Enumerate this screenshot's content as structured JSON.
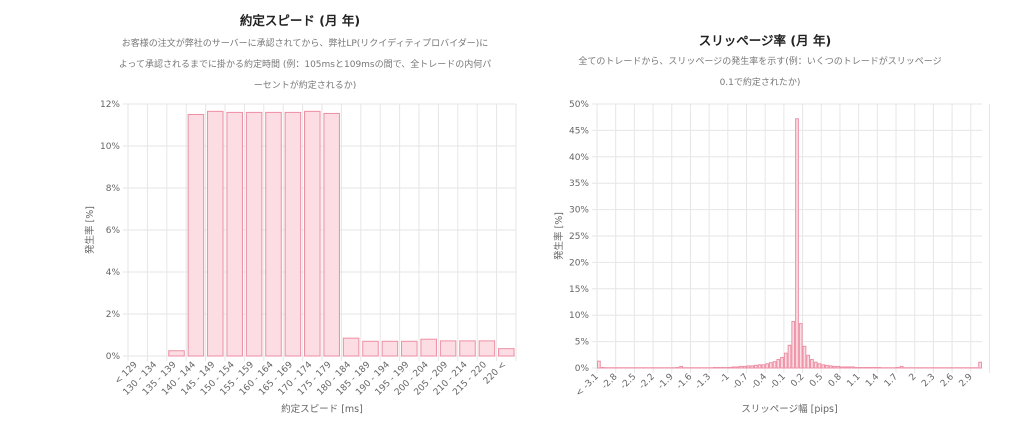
{
  "colors": {
    "bar_fill": "#fbdde3",
    "bar_stroke": "#ee8fa4",
    "grid": "#e6e6e6",
    "text": "#666666",
    "title": "#222222"
  },
  "chart_data": [
    {
      "type": "bar",
      "title": "約定スピード (月 年)",
      "subtitle_lines": [
        "お客様の注文が弊社のサーバーに承認されてから、弊社LP(リクイディティプロバイダー)に",
        "よって承認されるまでに掛かる約定時間 (例：105msと109msの間で、全トレードの内何パ",
        "ーセントが約定されるか)"
      ],
      "xlabel": "約定スピード [ms]",
      "ylabel": "発生率 [%]",
      "ylim": [
        0,
        12
      ],
      "yticks": [
        "0%",
        "2%",
        "4%",
        "6%",
        "8%",
        "10%",
        "12%"
      ],
      "grid": true,
      "legend": "none",
      "categories": [
        "< 129",
        "130 - 134",
        "135 - 139",
        "140 - 144",
        "145 - 149",
        "150 - 154",
        "155 - 159",
        "160 - 164",
        "165 - 169",
        "170 - 174",
        "175 - 179",
        "180 - 184",
        "185 - 189",
        "190 - 194",
        "195 - 199",
        "200 - 204",
        "205 - 209",
        "210 - 214",
        "215 - 220",
        "220 <"
      ],
      "values": [
        0,
        0,
        0.25,
        11.5,
        11.65,
        11.6,
        11.6,
        11.6,
        11.6,
        11.65,
        11.55,
        0.85,
        0.7,
        0.7,
        0.7,
        0.8,
        0.72,
        0.72,
        0.72,
        0.35
      ]
    },
    {
      "type": "bar",
      "title": "スリッページ率 (月 年)",
      "subtitle_lines": [
        "全てのトレードから、スリッページの発生率を示す(例：いくつのトレードがスリッページ",
        "0.1で約定されたか)"
      ],
      "xlabel": "スリッページ幅 [pips]",
      "ylabel": "発生率 [%]",
      "ylim": [
        0,
        50
      ],
      "yticks": [
        "0%",
        "5%",
        "10%",
        "15%",
        "20%",
        "25%",
        "30%",
        "35%",
        "40%",
        "45%",
        "50%"
      ],
      "grid": true,
      "legend": "none",
      "tick_labels": [
        "< -3.1",
        "-2.8",
        "-2.5",
        "-2.2",
        "-1.9",
        "-1.6",
        "-1.3",
        "-1",
        "-0.7",
        "-0.4",
        "-0.1",
        "0.2",
        "0.5",
        "0.8",
        "1.1",
        "1.4",
        "1.7",
        "2",
        "2.3",
        "2.6",
        "2.9"
      ],
      "values": [
        1.3,
        0.1,
        0.05,
        0.05,
        0.05,
        0.05,
        0.05,
        0.05,
        0.05,
        0.05,
        0.05,
        0.05,
        0.05,
        0.05,
        0.05,
        0.05,
        0.05,
        0.05,
        0.05,
        0.05,
        0.05,
        0.1,
        0.3,
        0.05,
        0.05,
        0.05,
        0.05,
        0.05,
        0.05,
        0.05,
        0.05,
        0.1,
        0.1,
        0.1,
        0.1,
        0.1,
        0.2,
        0.2,
        0.3,
        0.3,
        0.4,
        0.4,
        0.5,
        0.6,
        0.6,
        0.8,
        1.0,
        1.2,
        1.6,
        2.0,
        2.8,
        4.3,
        8.8,
        47.2,
        8.4,
        4.1,
        2.4,
        1.6,
        1.1,
        0.8,
        0.6,
        0.5,
        0.4,
        0.3,
        0.3,
        0.2,
        0.2,
        0.2,
        0.2,
        0.1,
        0.1,
        0.1,
        0.1,
        0.1,
        0.1,
        0.1,
        0.05,
        0.05,
        0.05,
        0.05,
        0.1,
        0.3,
        0.05,
        0.05,
        0.05,
        0.05,
        0.05,
        0.05,
        0.05,
        0.05,
        0.05,
        0.05,
        0.05,
        0.05,
        0.05,
        0.05,
        0.05,
        0.05,
        0.05,
        0.05,
        0.05,
        0.05,
        1.1
      ]
    }
  ]
}
